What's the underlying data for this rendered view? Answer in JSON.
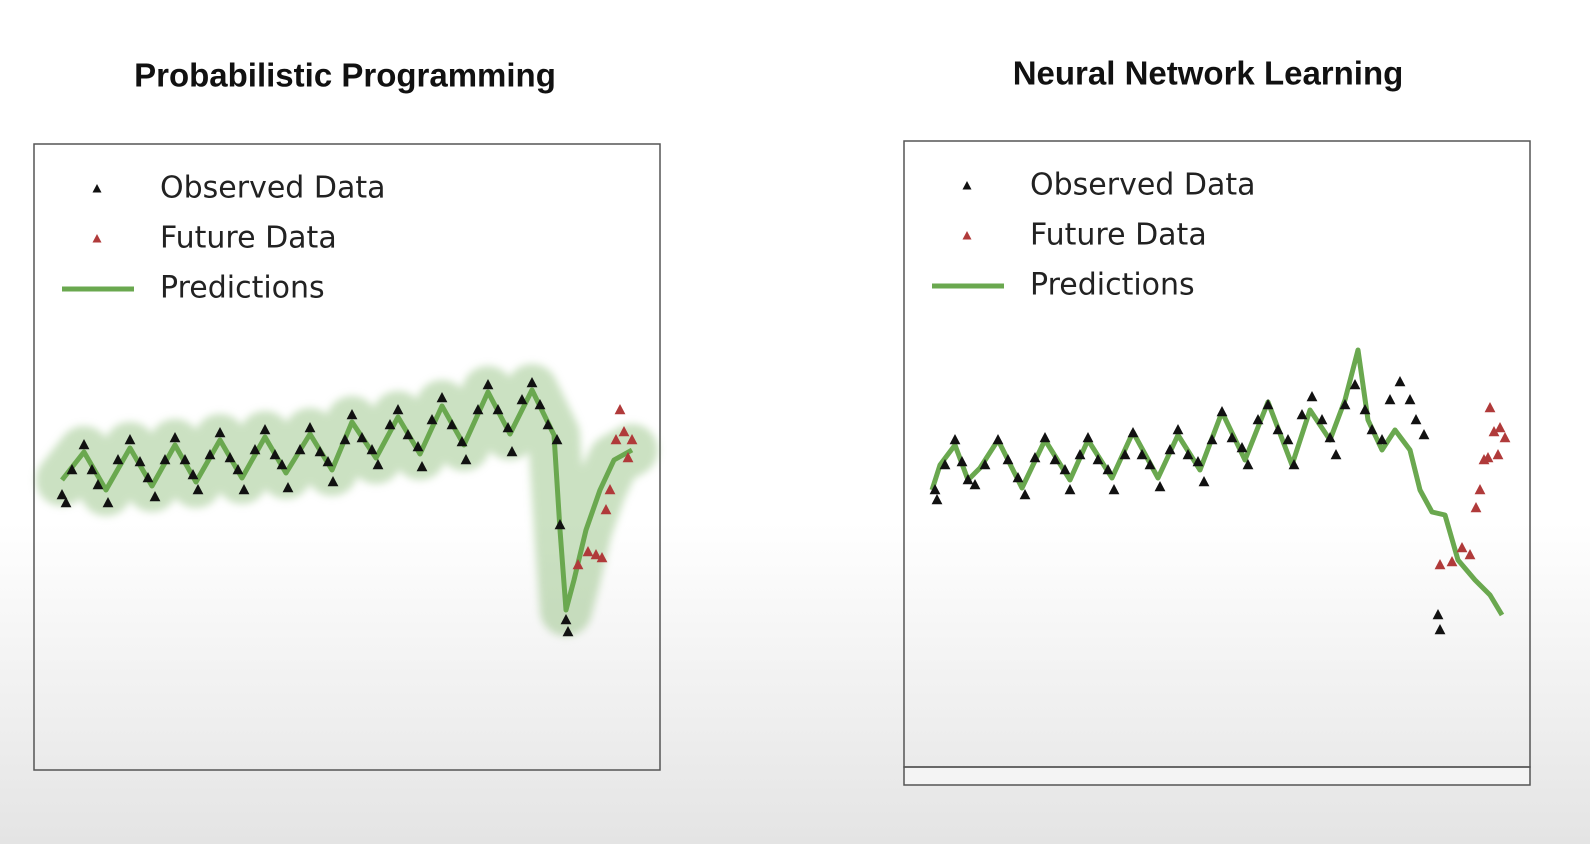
{
  "chart_data": [
    {
      "type": "scatter",
      "title": "Probabilistic Programming",
      "xlim": [
        0,
        626
      ],
      "ylim": [
        0,
        626
      ],
      "legend": "upper left",
      "band": true,
      "series": [
        {
          "name": "Observed Data",
          "type": "scatter",
          "color": "#111111",
          "x": [
            28,
            32,
            38,
            50,
            58,
            64,
            74,
            84,
            96,
            106,
            114,
            121,
            131,
            141,
            151,
            159,
            164,
            176,
            186,
            196,
            204,
            210,
            221,
            231,
            241,
            248,
            254,
            266,
            276,
            286,
            294,
            299,
            311,
            318,
            328,
            338,
            344,
            356,
            364,
            374,
            384,
            388,
            398,
            408,
            418,
            428,
            432,
            444,
            454,
            464,
            474,
            478,
            488,
            498,
            506,
            514,
            523,
            526,
            532,
            534
          ],
          "values": [
            275,
            267,
            300,
            325,
            300,
            285,
            267,
            310,
            330,
            308,
            292,
            273,
            310,
            332,
            310,
            295,
            280,
            315,
            337,
            312,
            300,
            280,
            320,
            340,
            315,
            305,
            282,
            320,
            342,
            318,
            308,
            288,
            330,
            355,
            332,
            320,
            305,
            345,
            360,
            335,
            323,
            303,
            350,
            372,
            345,
            328,
            310,
            360,
            385,
            360,
            342,
            318,
            370,
            387,
            365,
            345,
            330,
            245,
            150,
            138
          ]
        },
        {
          "name": "Future Data",
          "type": "scatter",
          "color": "#b03a3a",
          "x": [
            544,
            554,
            562,
            568,
            572,
            576,
            582,
            586,
            590,
            594,
            598
          ],
          "values": [
            205,
            218,
            215,
            212,
            260,
            280,
            330,
            360,
            338,
            312,
            330
          ]
        },
        {
          "name": "Predictions",
          "type": "line",
          "color": "#6aa84f",
          "x": [
            28,
            50,
            72,
            96,
            118,
            141,
            162,
            186,
            208,
            231,
            252,
            276,
            298,
            318,
            342,
            364,
            386,
            408,
            430,
            454,
            476,
            498,
            520,
            526,
            532,
            540,
            552,
            566,
            580,
            598
          ],
          "values": [
            290,
            318,
            280,
            322,
            284,
            325,
            288,
            330,
            292,
            333,
            297,
            336,
            300,
            348,
            312,
            353,
            316,
            364,
            325,
            378,
            336,
            380,
            335,
            240,
            160,
            190,
            240,
            280,
            310,
            320
          ]
        }
      ]
    },
    {
      "type": "scatter",
      "title": "Neural Network Learning",
      "xlim": [
        0,
        626
      ],
      "ylim": [
        0,
        626
      ],
      "legend": "upper left",
      "band": false,
      "series": [
        {
          "name": "Observed Data",
          "type": "scatter",
          "color": "#111111",
          "x": [
            31,
            33,
            41,
            51,
            58,
            64,
            71,
            81,
            94,
            104,
            114,
            121,
            131,
            141,
            151,
            161,
            166,
            176,
            184,
            194,
            204,
            210,
            221,
            229,
            238,
            246,
            256,
            266,
            274,
            284,
            294,
            300,
            308,
            318,
            328,
            338,
            344,
            354,
            364,
            374,
            384,
            390,
            398,
            408,
            418,
            426,
            432,
            441,
            451,
            461,
            468,
            478,
            486,
            496,
            506,
            512,
            520,
            534,
            536
          ],
          "values": [
            277,
            267,
            302,
            327,
            305,
            287,
            282,
            302,
            327,
            307,
            289,
            272,
            309,
            329,
            307,
            297,
            277,
            312,
            329,
            307,
            297,
            277,
            312,
            334,
            312,
            302,
            280,
            317,
            337,
            312,
            305,
            285,
            327,
            355,
            329,
            319,
            302,
            347,
            362,
            337,
            327,
            302,
            352,
            370,
            347,
            329,
            312,
            362,
            382,
            357,
            337,
            327,
            367,
            385,
            367,
            347,
            332,
            152,
            137
          ]
        },
        {
          "name": "Future Data",
          "type": "scatter",
          "color": "#b03a3a",
          "x": [
            536,
            548,
            558,
            566,
            572,
            576,
            580,
            586,
            590,
            596,
            601,
            584,
            594
          ],
          "values": [
            202,
            205,
            219,
            212,
            259,
            277,
            307,
            359,
            335,
            339,
            329,
            309,
            312
          ]
        },
        {
          "name": "Predictions",
          "type": "line",
          "color": "#6aa84f",
          "x": [
            28,
            36,
            51,
            64,
            76,
            94,
            118,
            141,
            166,
            184,
            208,
            229,
            254,
            274,
            296,
            318,
            341,
            364,
            388,
            406,
            426,
            441,
            454,
            464,
            478,
            491,
            506,
            516,
            528,
            541,
            554,
            571,
            586,
            598
          ],
          "values": [
            277,
            302,
            322,
            287,
            299,
            327,
            279,
            327,
            287,
            327,
            289,
            335,
            289,
            332,
            297,
            355,
            307,
            365,
            302,
            357,
            327,
            367,
            417,
            347,
            317,
            337,
            317,
            277,
            255,
            252,
            207,
            187,
            172,
            152
          ]
        }
      ]
    }
  ]
}
